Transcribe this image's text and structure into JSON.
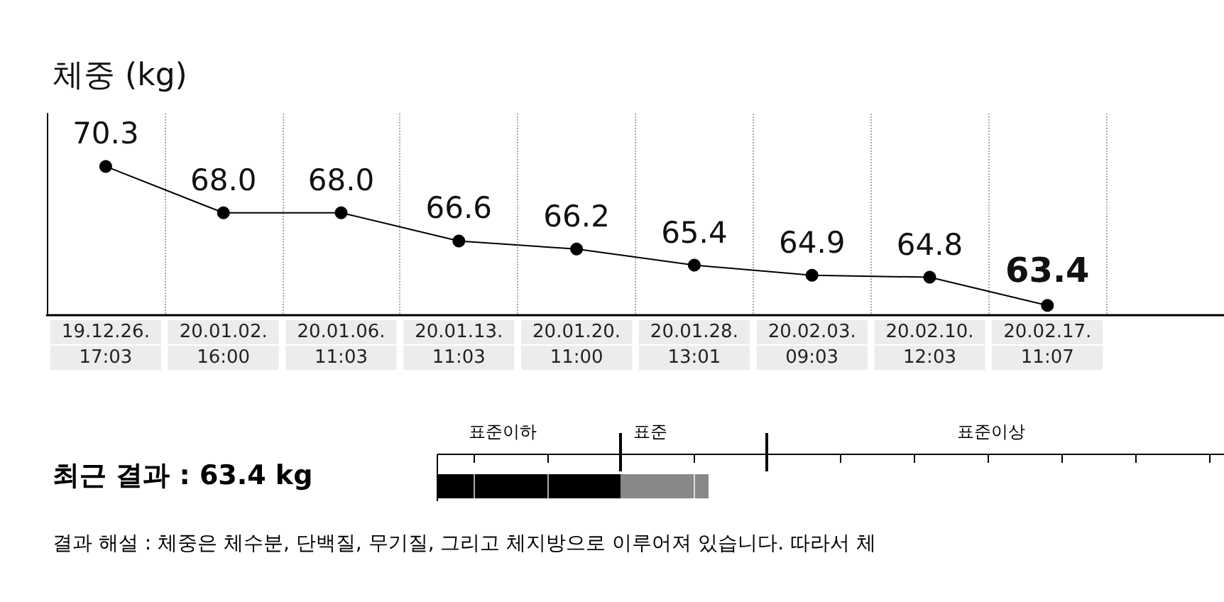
{
  "chart_data": {
    "type": "line",
    "title": "체중 (kg)",
    "categories": [
      "19.12.26.\n17:03",
      "20.01.02.\n16:00",
      "20.01.06.\n11:03",
      "20.01.13.\n11:03",
      "20.01.20.\n11:00",
      "20.01.28.\n13:01",
      "20.02.03.\n09:03",
      "20.02.10.\n12:03",
      "20.02.17.\n11:07",
      null
    ],
    "series": [
      {
        "color": "#000000",
        "values": [
          70.3,
          68.0,
          68.0,
          66.6,
          66.2,
          65.4,
          64.9,
          64.8,
          63.4,
          null
        ],
        "value_labels": [
          "70.3",
          "68.0",
          "68.0",
          "66.6",
          "66.2",
          "65.4",
          "64.9",
          "64.8",
          "63.4",
          null
        ]
      }
    ],
    "marker": "circle",
    "line_style": "solid",
    "grid": "x",
    "tick_labels": "x",
    "annotations": [
      "최근 결과 : 63.4 kg",
      "표준이하",
      "표준",
      "표준이상",
      "결과 해설 : 체중은 체수분, 단백질, 무기질, 그리고 체지방으로 이루어져 있습니다. 따라서 체"
    ]
  }
}
